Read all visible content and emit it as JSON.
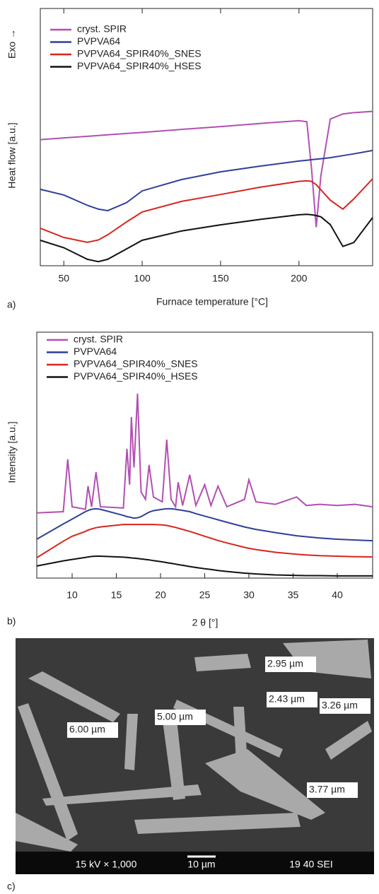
{
  "chart_data": [
    {
      "type": "line",
      "xlabel": "Furnace temperature [°C]",
      "ylabel": "Heat flow [a.u.]",
      "y_annotation": "Exo →",
      "x": [
        35,
        50,
        65,
        72,
        78,
        90,
        100,
        125,
        150,
        175,
        200,
        205,
        208,
        211,
        214,
        220,
        228,
        235,
        247
      ],
      "xlim": [
        35,
        247
      ],
      "ylim": [
        0,
        10
      ],
      "xticks": [
        50,
        100,
        150,
        200
      ],
      "legend": "upper-left",
      "series": [
        {
          "name": "cryst. SPIR",
          "color": "#b24fb3",
          "values": [
            4.9,
            4.97,
            5.03,
            5.06,
            5.09,
            5.14,
            5.18,
            5.3,
            5.41,
            5.53,
            5.64,
            5.6,
            3.8,
            1.5,
            3.5,
            5.7,
            5.9,
            5.95,
            6.0
          ]
        },
        {
          "name": "PVPVA64",
          "color": "#2f3f9a",
          "values": [
            2.97,
            2.75,
            2.35,
            2.2,
            2.14,
            2.45,
            2.91,
            3.35,
            3.65,
            3.87,
            4.07,
            4.1,
            4.12,
            4.14,
            4.16,
            4.2,
            4.28,
            4.35,
            4.48
          ]
        },
        {
          "name": "PVPVA64_SPIR40%_SNES",
          "color": "#d7261e",
          "values": [
            1.46,
            1.1,
            0.91,
            1.0,
            1.2,
            1.7,
            2.09,
            2.5,
            2.77,
            3.05,
            3.28,
            3.3,
            3.28,
            3.15,
            2.95,
            2.55,
            2.2,
            2.6,
            3.38
          ]
        },
        {
          "name": "PVPVA64_SPIR40%_HSES",
          "color": "#111111",
          "values": [
            0.99,
            0.7,
            0.25,
            0.16,
            0.25,
            0.65,
            0.99,
            1.35,
            1.59,
            1.8,
            1.98,
            2.0,
            1.98,
            1.95,
            1.9,
            1.6,
            0.75,
            0.9,
            1.87
          ]
        }
      ]
    },
    {
      "type": "line",
      "xlabel": "2 θ [°]",
      "ylabel": "Intensity [a.u.]",
      "x": [
        6,
        9,
        9.5,
        10,
        11.5,
        11.8,
        12.2,
        12.7,
        13.2,
        15.8,
        16.2,
        16.5,
        16.7,
        17,
        17.4,
        17.8,
        18.3,
        18.7,
        19.2,
        20.2,
        20.7,
        21.2,
        21.7,
        22,
        22.5,
        23.3,
        24,
        25,
        25.7,
        26.5,
        27.5,
        29.5,
        30,
        30.8,
        33,
        35.4,
        36.5,
        38,
        40,
        42,
        44
      ],
      "xlim": [
        6,
        44
      ],
      "ylim": [
        0,
        10
      ],
      "xticks": [
        10,
        15,
        20,
        25,
        30,
        35,
        40
      ],
      "legend": "upper-left",
      "series": [
        {
          "name": "cryst. SPIR",
          "color": "#b24fb3",
          "values": [
            2.65,
            2.7,
            4.83,
            2.9,
            2.8,
            3.74,
            2.9,
            4.31,
            2.9,
            2.85,
            5.26,
            3.8,
            6.55,
            4.5,
            7.5,
            3.5,
            3.2,
            4.6,
            3.3,
            3.1,
            5.63,
            3.2,
            2.9,
            3.9,
            2.95,
            4.2,
            2.95,
            3.8,
            2.95,
            3.74,
            2.9,
            3.2,
            4.0,
            3.1,
            3.0,
            3.3,
            2.95,
            3.0,
            2.95,
            3.0,
            2.9
          ]
        },
        {
          "name": "PVPVA64",
          "color": "#2f3f9a",
          "values": [
            1.58,
            2.2,
            2.3,
            2.4,
            2.7,
            2.75,
            2.8,
            2.82,
            2.8,
            2.55,
            2.5,
            2.48,
            2.46,
            2.44,
            2.45,
            2.5,
            2.6,
            2.68,
            2.74,
            2.8,
            2.82,
            2.82,
            2.8,
            2.78,
            2.75,
            2.7,
            2.62,
            2.52,
            2.45,
            2.37,
            2.27,
            2.08,
            2.04,
            1.98,
            1.85,
            1.72,
            1.68,
            1.63,
            1.58,
            1.55,
            1.52
          ]
        },
        {
          "name": "PVPVA64_SPIR40%_SNES",
          "color": "#d7261e",
          "values": [
            0.83,
            1.5,
            1.6,
            1.7,
            1.9,
            1.95,
            2.0,
            2.05,
            2.08,
            2.18,
            2.18,
            2.18,
            2.18,
            2.18,
            2.18,
            2.18,
            2.18,
            2.18,
            2.18,
            2.16,
            2.14,
            2.1,
            2.06,
            2.03,
            1.98,
            1.9,
            1.82,
            1.7,
            1.62,
            1.53,
            1.43,
            1.25,
            1.21,
            1.16,
            1.05,
            0.97,
            0.94,
            0.91,
            0.89,
            0.87,
            0.86
          ]
        },
        {
          "name": "PVPVA64_SPIR40%_HSES",
          "color": "#111111",
          "values": [
            0.49,
            0.7,
            0.73,
            0.76,
            0.84,
            0.86,
            0.88,
            0.89,
            0.89,
            0.85,
            0.84,
            0.83,
            0.82,
            0.81,
            0.8,
            0.78,
            0.76,
            0.74,
            0.71,
            0.66,
            0.63,
            0.6,
            0.57,
            0.55,
            0.52,
            0.47,
            0.43,
            0.38,
            0.35,
            0.31,
            0.27,
            0.2,
            0.19,
            0.17,
            0.13,
            0.11,
            0.1,
            0.1,
            0.09,
            0.09,
            0.09
          ]
        }
      ]
    }
  ],
  "figure": {
    "panel_labels": [
      "a)",
      "b)",
      "c)"
    ],
    "sem_labels": [
      "2.95 µm",
      "3.26 µm",
      "2.43 µm",
      "5.00 µm",
      "6.00 µm",
      "3.77 µm"
    ],
    "sem_footer": [
      "15 kV × 1,000",
      "10 µm",
      "19 40 SEI"
    ]
  }
}
